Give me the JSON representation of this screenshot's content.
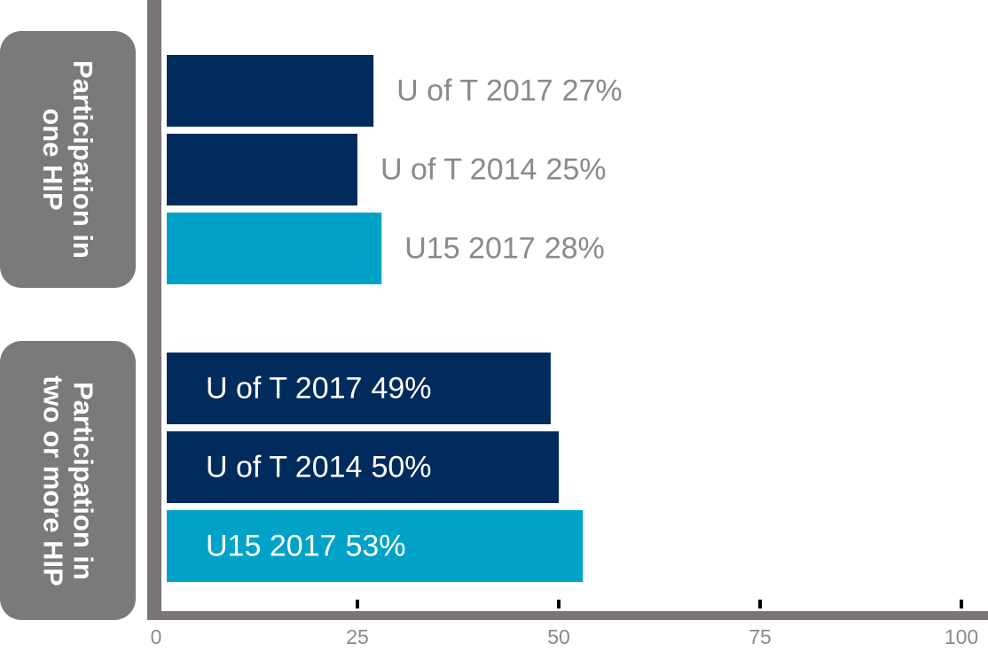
{
  "chart_data": {
    "type": "barh",
    "categories": [
      "Participation in\none HIP",
      "Participation in\ntwo or more HIP"
    ],
    "series": [
      {
        "name": "U of T 2017",
        "color": "#002b5c",
        "values": [
          27,
          49
        ],
        "value_labels": [
          "27%",
          "49%"
        ]
      },
      {
        "name": "U of T 2014",
        "color": "#002b5c",
        "values": [
          25,
          50
        ],
        "value_labels": [
          "25%",
          "50%"
        ]
      },
      {
        "name": "U15 2017",
        "color": "#00a3c7",
        "values": [
          28,
          53
        ],
        "value_labels": [
          "28%",
          "53%"
        ]
      }
    ],
    "xlim": [
      0,
      100
    ],
    "xticks": [
      0,
      25,
      50,
      75,
      100
    ]
  }
}
